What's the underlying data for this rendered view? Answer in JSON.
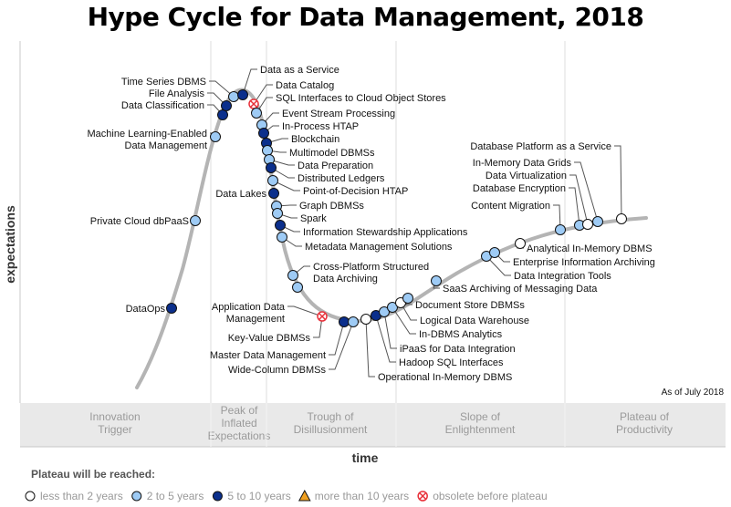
{
  "title": "Hype Cycle for Data Management, 2018",
  "y_axis_label": "expectations",
  "x_axis_label": "time",
  "as_of": "As of July 2018",
  "phases": [
    [
      "Innovation",
      "Trigger"
    ],
    [
      "Peak of",
      "Inflated",
      "Expectations"
    ],
    [
      "Trough of",
      "Disillusionment"
    ],
    [
      "Slope of",
      "Enlightenment"
    ],
    [
      "Plateau of",
      "Productivity"
    ]
  ],
  "legend": {
    "title": "Plateau will be reached:",
    "items": [
      {
        "status": "lt2",
        "label": "less than 2 years"
      },
      {
        "status": "2to5",
        "label": "2 to 5 years"
      },
      {
        "status": "5to10",
        "label": "5 to 10 years"
      },
      {
        "status": "gt10",
        "label": "more than 10 years"
      },
      {
        "status": "obsolete",
        "label": "obsolete before plateau"
      }
    ]
  },
  "colors": {
    "lt2": "#ffffff",
    "2to5": "#9ecbf5",
    "5to10": "#0b2f8c",
    "gt10": "#f0a020",
    "obsolete": "#e8313a",
    "curve": "#b4b4b4",
    "phase_band": "#e9e9e9"
  },
  "points": [
    {
      "label": [
        "DataOps"
      ],
      "status": "5to10"
    },
    {
      "label": [
        "Private Cloud dbPaaS"
      ],
      "status": "2to5"
    },
    {
      "label": [
        "Machine Learning-Enabled",
        "Data Management"
      ],
      "status": "2to5"
    },
    {
      "label": [
        "Data Classification"
      ],
      "status": "5to10"
    },
    {
      "label": [
        "File Analysis"
      ],
      "status": "5to10"
    },
    {
      "label": [
        "Time Series DBMS"
      ],
      "status": "2to5"
    },
    {
      "label": [
        "Data as a Service"
      ],
      "status": "5to10"
    },
    {
      "label": [
        "Data Catalog"
      ],
      "status": "obsolete"
    },
    {
      "label": [
        "SQL Interfaces to Cloud Object Stores"
      ],
      "status": "2to5"
    },
    {
      "label": [
        "Event Stream Processing"
      ],
      "status": "2to5"
    },
    {
      "label": [
        "In-Process HTAP"
      ],
      "status": "5to10"
    },
    {
      "label": [
        "Blockchain"
      ],
      "status": "5to10"
    },
    {
      "label": [
        "Multimodel DBMSs"
      ],
      "status": "2to5"
    },
    {
      "label": [
        "Data Preparation"
      ],
      "status": "2to5"
    },
    {
      "label": [
        "Distributed Ledgers"
      ],
      "status": "5to10"
    },
    {
      "label": [
        "Point-of-Decision HTAP"
      ],
      "status": "2to5"
    },
    {
      "label": [
        "Data Lakes"
      ],
      "status": "5to10"
    },
    {
      "label": [
        "Graph DBMSs"
      ],
      "status": "2to5"
    },
    {
      "label": [
        "Spark"
      ],
      "status": "2to5"
    },
    {
      "label": [
        "Information Stewardship Applications"
      ],
      "status": "5to10"
    },
    {
      "label": [
        "Metadata Management Solutions"
      ],
      "status": "2to5"
    },
    {
      "label": [
        "Cross-Platform Structured",
        "Data Archiving"
      ],
      "status": "2to5"
    },
    {
      "label": [],
      "status": "2to5"
    },
    {
      "label": [
        "Application Data",
        "Management"
      ],
      "status": "obsolete"
    },
    {
      "label": [
        "Key-Value DBMSs"
      ],
      "status": "obsolete"
    },
    {
      "label": [
        "Master Data Management"
      ],
      "status": "5to10"
    },
    {
      "label": [
        "Wide-Column DBMSs"
      ],
      "status": "2to5"
    },
    {
      "label": [
        "Operational In-Memory DBMS"
      ],
      "status": "lt2"
    },
    {
      "label": [
        "Hadoop SQL Interfaces"
      ],
      "status": "5to10"
    },
    {
      "label": [
        "iPaaS for Data Integration"
      ],
      "status": "2to5"
    },
    {
      "label": [
        "In-DBMS Analytics"
      ],
      "status": "2to5"
    },
    {
      "label": [
        "Logical Data Warehouse"
      ],
      "status": "lt2"
    },
    {
      "label": [
        "Document Store DBMSs"
      ],
      "status": "2to5"
    },
    {
      "label": [
        "SaaS Archiving of Messaging Data"
      ],
      "status": "2to5"
    },
    {
      "label": [
        "Data Integration Tools"
      ],
      "status": "2to5"
    },
    {
      "label": [
        "Enterprise Information Archiving"
      ],
      "status": "2to5"
    },
    {
      "label": [
        "Analytical In-Memory DBMS"
      ],
      "status": "lt2"
    },
    {
      "label": [
        "Content Migration"
      ],
      "status": "2to5"
    },
    {
      "label": [
        "Database Encryption"
      ],
      "status": "2to5"
    },
    {
      "label": [
        "Data Virtualization"
      ],
      "status": "lt2"
    },
    {
      "label": [
        "In-Memory Data Grids"
      ],
      "status": "2to5"
    },
    {
      "label": [
        "Database Platform as a Service"
      ],
      "status": "lt2"
    }
  ]
}
